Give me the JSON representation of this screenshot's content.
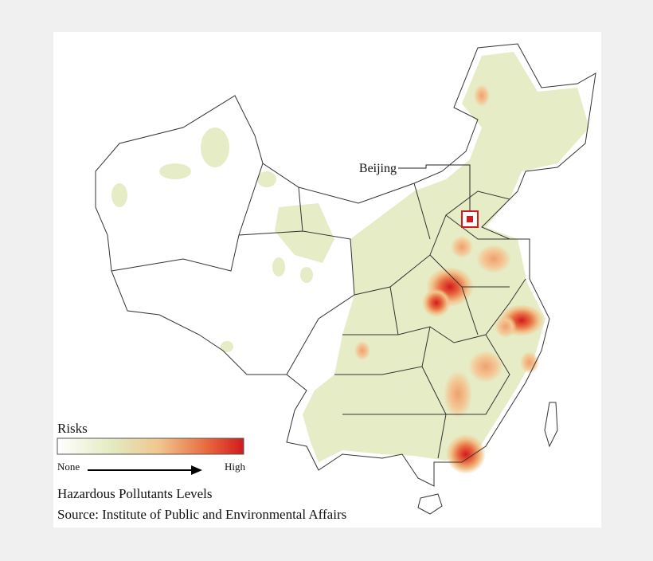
{
  "annotation": {
    "label": "Beijing"
  },
  "legend": {
    "title": "Risks",
    "low": "None",
    "high": "High"
  },
  "caption": {
    "title": "Hazardous Pollutants Levels",
    "source": "Source: Institute of Public and Environmental Affairs"
  }
}
